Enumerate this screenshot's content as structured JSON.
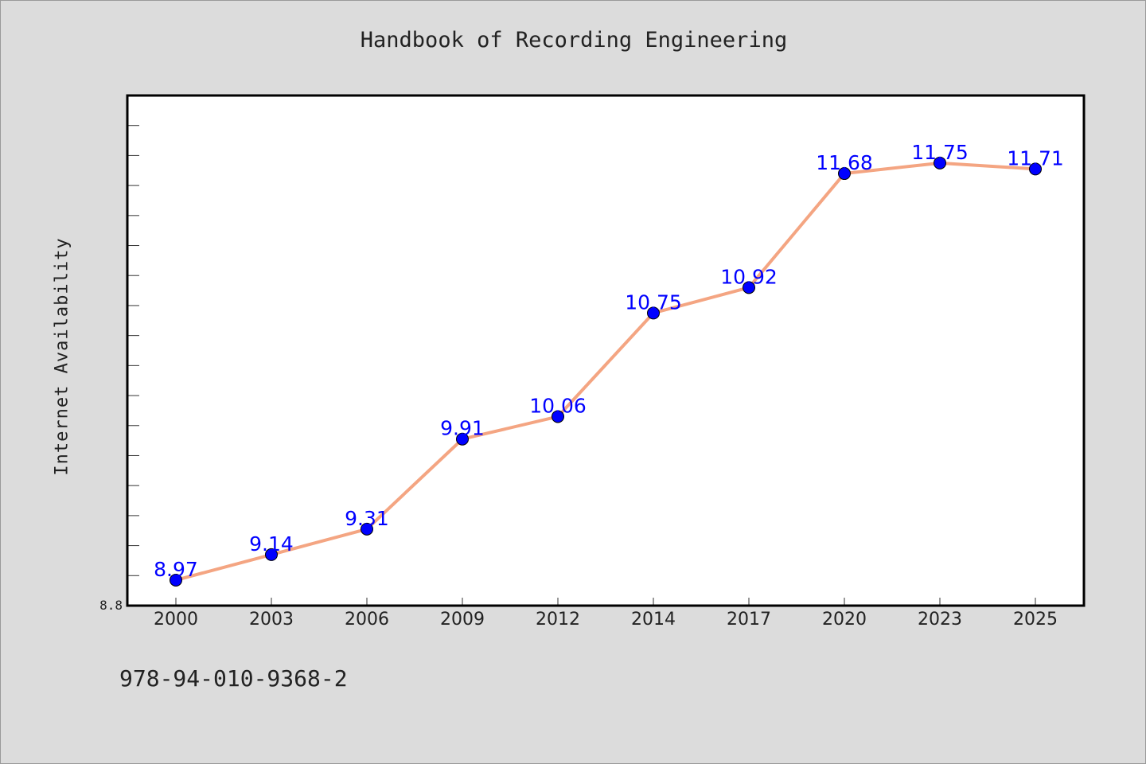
{
  "chart_data": {
    "type": "line",
    "title": "Handbook of Recording Engineering",
    "xlabel": "",
    "ylabel": "Internet Availability",
    "categories": [
      "2000",
      "2003",
      "2006",
      "2009",
      "2012",
      "2014",
      "2017",
      "2020",
      "2023",
      "2025"
    ],
    "series": [
      {
        "values": [
          8.97,
          9.14,
          9.31,
          9.91,
          10.06,
          10.75,
          10.92,
          11.68,
          11.75,
          11.71
        ],
        "data_labels": [
          "8.97",
          "9.14",
          "9.31",
          "9.91",
          "10.06",
          "10.75",
          "10.92",
          "11.68",
          "11.75",
          "11.71"
        ]
      }
    ],
    "ylim": [
      8.8,
      12.2
    ],
    "y_tick_labels": [
      "8.8"
    ],
    "grid": false,
    "colors": {
      "line": "#f4a582",
      "marker": "#0000ff",
      "data_label": "#0000ff",
      "background": "#dcdcdc",
      "plot_background": "#ffffff"
    }
  },
  "footer": {
    "code": "978-94-010-9368-2"
  }
}
